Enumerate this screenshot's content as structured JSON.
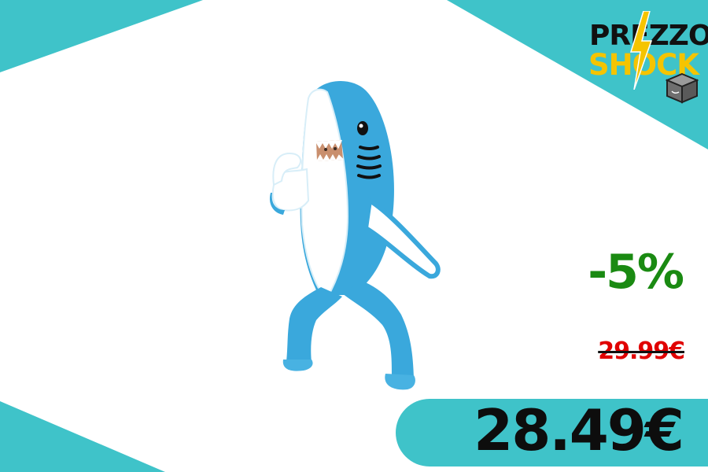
{
  "colors": {
    "accent_teal": "#3fc3c9",
    "discount_green": "#1a8a12",
    "old_price_red": "#e00000",
    "logo_yellow": "#f5c400",
    "text_dark": "#0d0d0d"
  },
  "logo": {
    "line1": "PREZZO",
    "line2": "SHOCK",
    "icon": "package-box-icon"
  },
  "product": {
    "image": "inflatable-shark-costume"
  },
  "pricing": {
    "discount": "-5%",
    "old_price": "29.99€",
    "new_price": "28.49€"
  }
}
